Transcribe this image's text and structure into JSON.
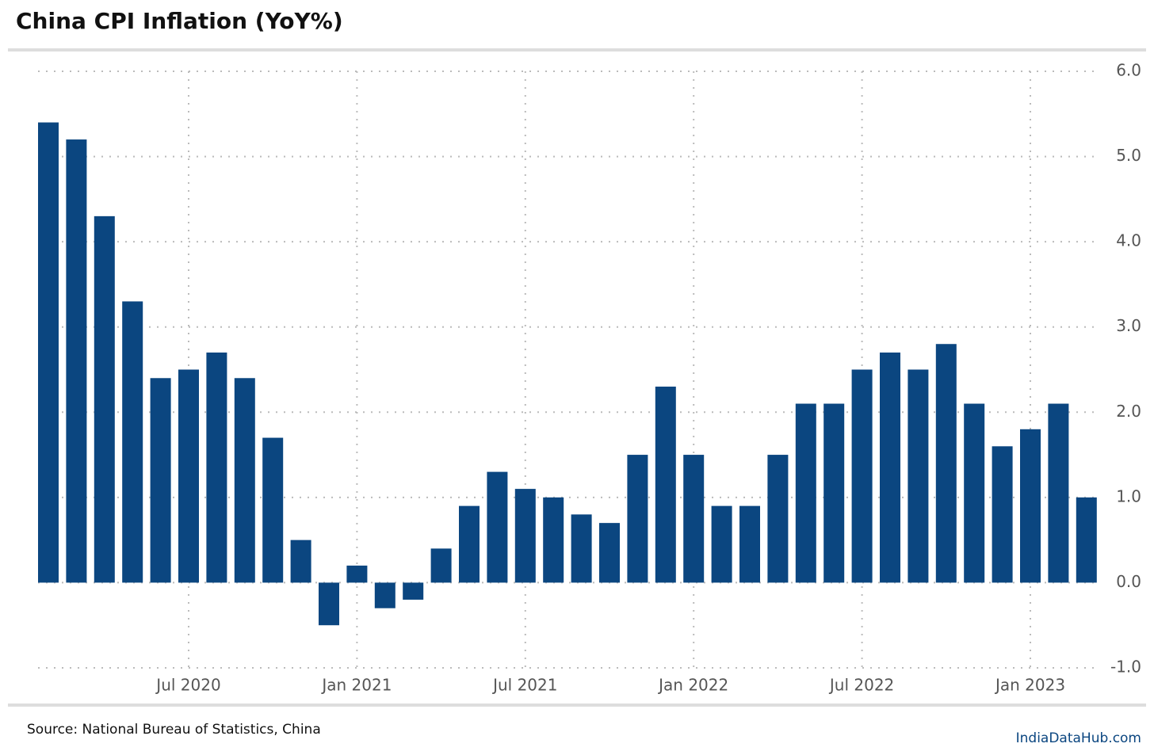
{
  "chart_data": {
    "type": "bar",
    "title": "China CPI Inflation (YoY%)",
    "categories": [
      null,
      null,
      null,
      null,
      null,
      "Jul 2020",
      null,
      null,
      null,
      null,
      null,
      "Jan 2021",
      null,
      null,
      null,
      null,
      null,
      "Jul 2021",
      null,
      null,
      null,
      null,
      null,
      "Jan 2022",
      null,
      null,
      null,
      null,
      null,
      "Jul 2022",
      null,
      null,
      null,
      null,
      null,
      "Jan 2023",
      null,
      null
    ],
    "values": [
      5.4,
      5.2,
      4.3,
      3.3,
      2.4,
      2.5,
      2.7,
      2.4,
      1.7,
      0.5,
      -0.5,
      0.2,
      -0.3,
      -0.2,
      0.4,
      0.9,
      1.3,
      1.1,
      1.0,
      0.8,
      0.7,
      1.5,
      2.3,
      1.5,
      0.9,
      0.9,
      1.5,
      2.1,
      2.1,
      2.5,
      2.7,
      2.5,
      2.8,
      2.1,
      1.6,
      1.8,
      2.1,
      1.0
    ],
    "color": "#0b4680",
    "ylim": [
      -1,
      6
    ],
    "yticks": [
      {
        "value": -1,
        "label": "-1.0"
      },
      {
        "value": 0,
        "label": "0.0"
      },
      {
        "value": 1,
        "label": "1.0"
      },
      {
        "value": 2,
        "label": "2.0"
      },
      {
        "value": 3,
        "label": "3.0"
      },
      {
        "value": 4,
        "label": "4.0"
      },
      {
        "value": 5,
        "label": "5.0"
      },
      {
        "value": 6,
        "label": "6.0"
      }
    ],
    "grid": true,
    "source": "Source: National Bureau of Statistics, China",
    "brand": "IndiaDataHub.com"
  }
}
